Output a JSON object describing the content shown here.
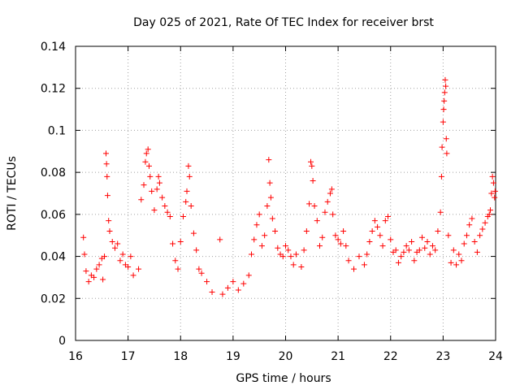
{
  "chart_data": {
    "type": "scatter",
    "title": "Day 025 of 2021, Rate Of TEC Index for receiver brst",
    "xlabel": "GPS time / hours",
    "ylabel": "ROTI / TECUs",
    "xlim": [
      16,
      24
    ],
    "ylim": [
      0,
      0.14
    ],
    "x_ticks": [
      16,
      17,
      18,
      19,
      20,
      21,
      22,
      23,
      24
    ],
    "x_tick_labels": [
      "16",
      "17",
      "18",
      "19",
      "20",
      "21",
      "22",
      "23",
      "24"
    ],
    "y_ticks": [
      0,
      0.02,
      0.04,
      0.06,
      0.08,
      0.1,
      0.12,
      0.14
    ],
    "y_tick_labels": [
      "0",
      "0.02",
      "0.04",
      "0.06",
      "0.08",
      "0.1",
      "0.12",
      "0.14"
    ],
    "grid": true,
    "marker": "+",
    "color": "#ff0000",
    "series": [
      {
        "name": "ROTI",
        "points": [
          [
            16.15,
            0.049
          ],
          [
            16.17,
            0.041
          ],
          [
            16.2,
            0.033
          ],
          [
            16.25,
            0.028
          ],
          [
            16.3,
            0.031
          ],
          [
            16.35,
            0.03
          ],
          [
            16.4,
            0.034
          ],
          [
            16.45,
            0.036
          ],
          [
            16.5,
            0.039
          ],
          [
            16.52,
            0.029
          ],
          [
            16.55,
            0.04
          ],
          [
            16.58,
            0.089
          ],
          [
            16.59,
            0.084
          ],
          [
            16.6,
            0.078
          ],
          [
            16.61,
            0.069
          ],
          [
            16.63,
            0.057
          ],
          [
            16.65,
            0.052
          ],
          [
            16.7,
            0.047
          ],
          [
            16.75,
            0.044
          ],
          [
            16.8,
            0.046
          ],
          [
            16.85,
            0.038
          ],
          [
            16.9,
            0.041
          ],
          [
            16.95,
            0.036
          ],
          [
            17.0,
            0.035
          ],
          [
            17.05,
            0.04
          ],
          [
            17.1,
            0.031
          ],
          [
            17.2,
            0.034
          ],
          [
            17.25,
            0.067
          ],
          [
            17.3,
            0.074
          ],
          [
            17.33,
            0.085
          ],
          [
            17.35,
            0.089
          ],
          [
            17.38,
            0.091
          ],
          [
            17.4,
            0.083
          ],
          [
            17.42,
            0.078
          ],
          [
            17.45,
            0.071
          ],
          [
            17.5,
            0.062
          ],
          [
            17.55,
            0.072
          ],
          [
            17.58,
            0.078
          ],
          [
            17.6,
            0.075
          ],
          [
            17.65,
            0.068
          ],
          [
            17.7,
            0.064
          ],
          [
            17.75,
            0.061
          ],
          [
            17.8,
            0.059
          ],
          [
            17.85,
            0.046
          ],
          [
            17.9,
            0.038
          ],
          [
            17.95,
            0.034
          ],
          [
            18.0,
            0.047
          ],
          [
            18.05,
            0.059
          ],
          [
            18.1,
            0.066
          ],
          [
            18.12,
            0.071
          ],
          [
            18.15,
            0.083
          ],
          [
            18.17,
            0.078
          ],
          [
            18.2,
            0.064
          ],
          [
            18.25,
            0.051
          ],
          [
            18.3,
            0.043
          ],
          [
            18.35,
            0.034
          ],
          [
            18.4,
            0.032
          ],
          [
            18.5,
            0.028
          ],
          [
            18.6,
            0.023
          ],
          [
            18.75,
            0.048
          ],
          [
            18.8,
            0.022
          ],
          [
            18.9,
            0.025
          ],
          [
            19.0,
            0.028
          ],
          [
            19.1,
            0.024
          ],
          [
            19.2,
            0.027
          ],
          [
            19.3,
            0.031
          ],
          [
            19.35,
            0.041
          ],
          [
            19.4,
            0.048
          ],
          [
            19.45,
            0.055
          ],
          [
            19.5,
            0.06
          ],
          [
            19.55,
            0.045
          ],
          [
            19.6,
            0.05
          ],
          [
            19.65,
            0.064
          ],
          [
            19.68,
            0.086
          ],
          [
            19.7,
            0.075
          ],
          [
            19.72,
            0.068
          ],
          [
            19.75,
            0.058
          ],
          [
            19.8,
            0.052
          ],
          [
            19.85,
            0.044
          ],
          [
            19.9,
            0.041
          ],
          [
            19.95,
            0.04
          ],
          [
            20.0,
            0.045
          ],
          [
            20.05,
            0.043
          ],
          [
            20.1,
            0.04
          ],
          [
            20.15,
            0.036
          ],
          [
            20.2,
            0.041
          ],
          [
            20.3,
            0.035
          ],
          [
            20.35,
            0.043
          ],
          [
            20.4,
            0.052
          ],
          [
            20.45,
            0.065
          ],
          [
            20.48,
            0.085
          ],
          [
            20.5,
            0.083
          ],
          [
            20.52,
            0.076
          ],
          [
            20.55,
            0.064
          ],
          [
            20.6,
            0.057
          ],
          [
            20.65,
            0.045
          ],
          [
            20.7,
            0.049
          ],
          [
            20.75,
            0.061
          ],
          [
            20.8,
            0.066
          ],
          [
            20.85,
            0.07
          ],
          [
            20.88,
            0.072
          ],
          [
            20.9,
            0.06
          ],
          [
            20.95,
            0.05
          ],
          [
            21.0,
            0.048
          ],
          [
            21.05,
            0.046
          ],
          [
            21.1,
            0.052
          ],
          [
            21.15,
            0.045
          ],
          [
            21.2,
            0.038
          ],
          [
            21.3,
            0.034
          ],
          [
            21.4,
            0.04
          ],
          [
            21.5,
            0.036
          ],
          [
            21.55,
            0.041
          ],
          [
            21.6,
            0.047
          ],
          [
            21.65,
            0.052
          ],
          [
            21.7,
            0.057
          ],
          [
            21.75,
            0.054
          ],
          [
            21.8,
            0.05
          ],
          [
            21.85,
            0.045
          ],
          [
            21.9,
            0.057
          ],
          [
            21.95,
            0.059
          ],
          [
            22.0,
            0.048
          ],
          [
            22.05,
            0.042
          ],
          [
            22.1,
            0.043
          ],
          [
            22.15,
            0.037
          ],
          [
            22.2,
            0.04
          ],
          [
            22.25,
            0.042
          ],
          [
            22.3,
            0.045
          ],
          [
            22.35,
            0.043
          ],
          [
            22.4,
            0.047
          ],
          [
            22.45,
            0.038
          ],
          [
            22.5,
            0.042
          ],
          [
            22.55,
            0.043
          ],
          [
            22.6,
            0.049
          ],
          [
            22.65,
            0.044
          ],
          [
            22.7,
            0.047
          ],
          [
            22.75,
            0.041
          ],
          [
            22.8,
            0.045
          ],
          [
            22.85,
            0.043
          ],
          [
            22.9,
            0.052
          ],
          [
            22.95,
            0.061
          ],
          [
            22.97,
            0.078
          ],
          [
            22.98,
            0.092
          ],
          [
            23.0,
            0.104
          ],
          [
            23.01,
            0.11
          ],
          [
            23.02,
            0.114
          ],
          [
            23.03,
            0.118
          ],
          [
            23.04,
            0.124
          ],
          [
            23.05,
            0.121
          ],
          [
            23.06,
            0.096
          ],
          [
            23.07,
            0.089
          ],
          [
            23.1,
            0.05
          ],
          [
            23.15,
            0.037
          ],
          [
            23.2,
            0.043
          ],
          [
            23.25,
            0.036
          ],
          [
            23.3,
            0.041
          ],
          [
            23.35,
            0.038
          ],
          [
            23.4,
            0.046
          ],
          [
            23.45,
            0.05
          ],
          [
            23.5,
            0.055
          ],
          [
            23.55,
            0.058
          ],
          [
            23.6,
            0.047
          ],
          [
            23.65,
            0.042
          ],
          [
            23.7,
            0.05
          ],
          [
            23.75,
            0.053
          ],
          [
            23.8,
            0.056
          ],
          [
            23.85,
            0.059
          ],
          [
            23.88,
            0.06
          ],
          [
            23.9,
            0.062
          ],
          [
            23.92,
            0.07
          ],
          [
            23.94,
            0.078
          ],
          [
            23.96,
            0.075
          ],
          [
            23.98,
            0.068
          ],
          [
            23.99,
            0.071
          ]
        ]
      }
    ]
  }
}
